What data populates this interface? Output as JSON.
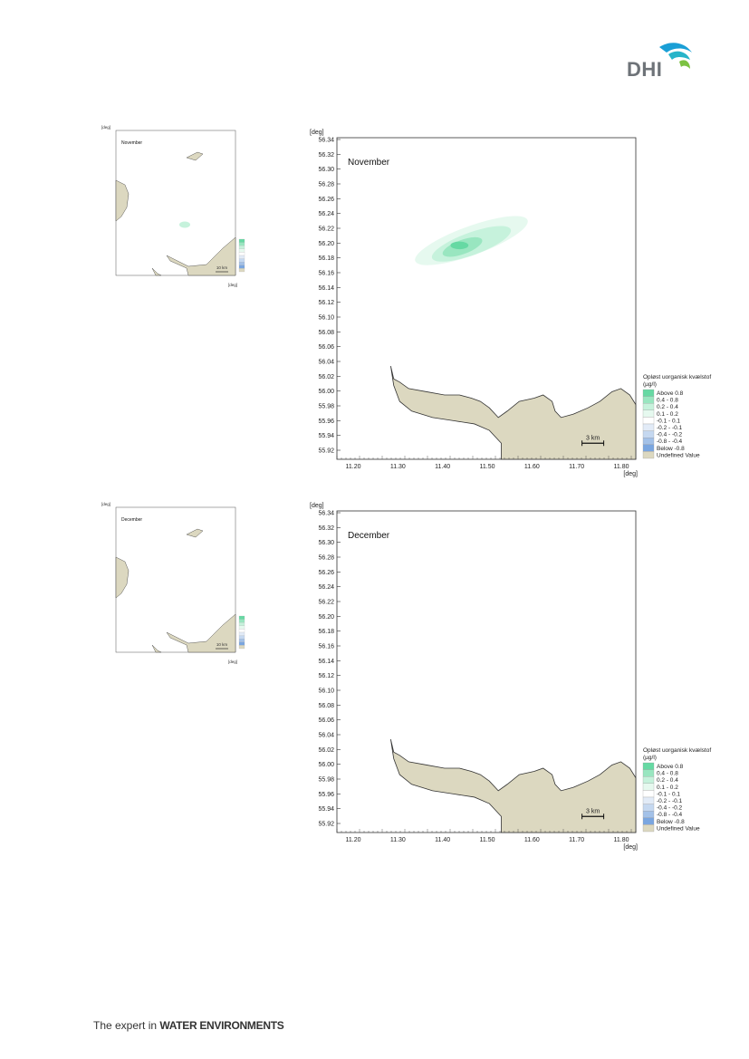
{
  "header": {
    "logo_text": "DHI"
  },
  "footer": {
    "prefix": "The expert in ",
    "emphasis": "WATER ENVIRONMENTS"
  },
  "axis": {
    "unit": "[deg]",
    "y_ticks": [
      "56.34",
      "56.32",
      "56.30",
      "56.28",
      "56.26",
      "56.24",
      "56.22",
      "56.20",
      "56.18",
      "56.16",
      "56.14",
      "56.12",
      "56.10",
      "56.08",
      "56.06",
      "56.04",
      "56.02",
      "56.00",
      "55.98",
      "55.96",
      "55.94",
      "55.92"
    ],
    "x_ticks": [
      "11.20",
      "11.30",
      "11.40",
      "11.50",
      "11.60",
      "11.70",
      "11.80"
    ]
  },
  "legend": {
    "title_line1": "Opløst uorganisk kvælstof",
    "title_line2": "(µg/l)",
    "items": [
      {
        "label": "Above  0.8",
        "color": "#66d9a3"
      },
      {
        "label": " 0.4 -  0.8",
        "color": "#99e6c0"
      },
      {
        "label": " 0.2 -  0.4",
        "color": "#c6f2dc"
      },
      {
        "label": " 0.1 -  0.2",
        "color": "#e6f9ef"
      },
      {
        "label": "-0.1 -  0.1",
        "color": "#ffffff"
      },
      {
        "label": "-0.2 - -0.1",
        "color": "#e2ebf7"
      },
      {
        "label": "-0.4 - -0.2",
        "color": "#c5d8f0"
      },
      {
        "label": "-0.8 - -0.4",
        "color": "#a3c1e8"
      },
      {
        "label": "Below -0.8",
        "color": "#7aa6e0"
      },
      {
        "label": "Undefined Value",
        "color": "#dcd8c0"
      }
    ]
  },
  "scale_bar": "3 km",
  "thumb_scale_bar": "10 km",
  "maps": [
    {
      "title": "November",
      "has_plume": true
    },
    {
      "title": "December",
      "has_plume": false
    }
  ],
  "colors": {
    "land": "#dcd8c0",
    "coast": "#333333"
  }
}
